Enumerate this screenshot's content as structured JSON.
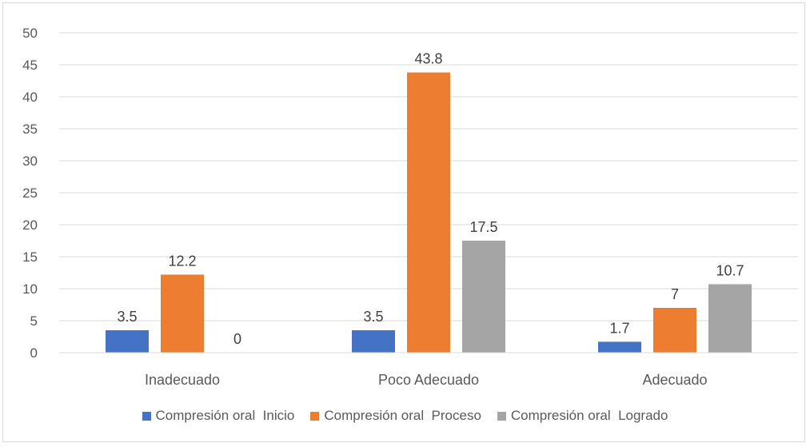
{
  "chart_data": {
    "type": "bar",
    "categories": [
      "Inadecuado",
      "Poco Adecuado",
      "Adecuado"
    ],
    "series": [
      {
        "name": "Compresión oral  Inicio",
        "color": "#4472c4",
        "values": [
          3.5,
          3.5,
          1.7
        ],
        "labels": [
          "3.5",
          "3.5",
          "1.7"
        ]
      },
      {
        "name": "Compresión oral  Proceso",
        "color": "#ed7d31",
        "values": [
          12.2,
          43.8,
          7
        ],
        "labels": [
          "12.2",
          "43.8",
          "7"
        ]
      },
      {
        "name": "Compresión oral  Logrado",
        "color": "#a5a5a5",
        "values": [
          0,
          17.5,
          10.7
        ],
        "labels": [
          "0",
          "17.5",
          "10.7"
        ]
      }
    ],
    "ylim": [
      0,
      50
    ],
    "yticks": [
      0,
      5,
      10,
      15,
      20,
      25,
      30,
      35,
      40,
      45,
      50
    ],
    "grid": true,
    "legend": "bottom"
  }
}
